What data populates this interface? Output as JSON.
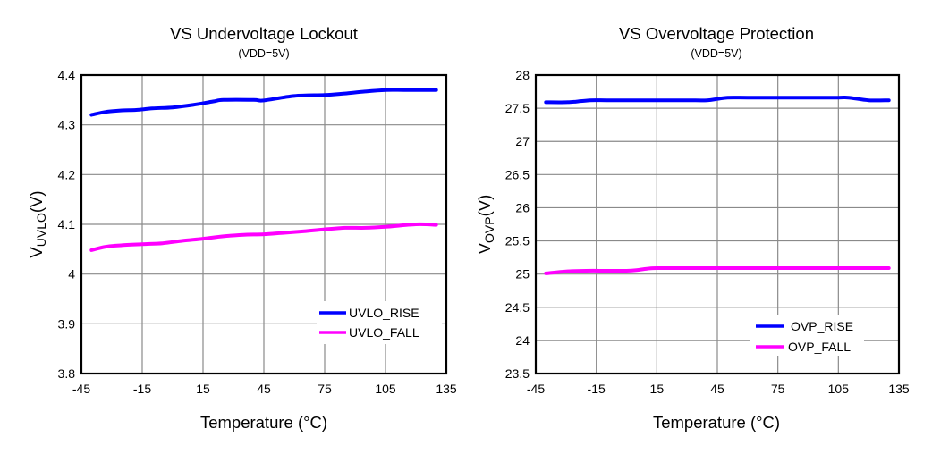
{
  "chart_data": [
    {
      "type": "line",
      "title": "VS Undervoltage Lockout",
      "subtitle": "(VDD=5V)",
      "xlabel": "Temperature (°C)",
      "ylabel_main": "V",
      "ylabel_sub": "UVLO",
      "ylabel_unit": "(V)",
      "xlim": [
        -45,
        135
      ],
      "ylim": [
        3.8,
        4.4
      ],
      "xticks": [
        "-45",
        "-15",
        "15",
        "45",
        "75",
        "105",
        "135"
      ],
      "yticks": [
        "3.8",
        "3.9",
        "4",
        "4.1",
        "4.2",
        "4.3",
        "4.4"
      ],
      "grid": true,
      "legend_position": "bottom-right",
      "series": [
        {
          "name": "UVLO_RISE",
          "color": "#0000ff",
          "x": [
            -40,
            -33,
            -25,
            -18,
            -10,
            0,
            10,
            20,
            25,
            40,
            45,
            60,
            75,
            85,
            95,
            105,
            115,
            130
          ],
          "y": [
            4.32,
            4.326,
            4.329,
            4.33,
            4.333,
            4.335,
            4.34,
            4.347,
            4.35,
            4.35,
            4.349,
            4.358,
            4.36,
            4.363,
            4.367,
            4.37,
            4.37,
            4.37
          ]
        },
        {
          "name": "UVLO_FALL",
          "color": "#ff00ff",
          "x": [
            -40,
            -33,
            -25,
            -15,
            -5,
            5,
            15,
            25,
            35,
            45,
            55,
            65,
            75,
            85,
            95,
            105,
            120,
            130
          ],
          "y": [
            4.048,
            4.055,
            4.058,
            4.06,
            4.062,
            4.067,
            4.071,
            4.076,
            4.079,
            4.08,
            4.083,
            4.086,
            4.09,
            4.093,
            4.093,
            4.095,
            4.1,
            4.099
          ]
        }
      ]
    },
    {
      "type": "line",
      "title": "VS Overvoltage Protection",
      "subtitle": "(VDD=5V)",
      "xlabel": "Temperature (°C)",
      "ylabel_main": "V",
      "ylabel_sub": "OVP",
      "ylabel_unit": "(V)",
      "xlim": [
        -45,
        135
      ],
      "ylim": [
        23.5,
        28
      ],
      "xticks": [
        "-45",
        "-15",
        "15",
        "45",
        "75",
        "105",
        "135"
      ],
      "yticks": [
        "23.5",
        "24",
        "24.5",
        "25",
        "25.5",
        "26",
        "26.5",
        "27",
        "27.5",
        "28"
      ],
      "grid": true,
      "legend_position": "bottom-right",
      "series": [
        {
          "name": "OVP_RISE",
          "color": "#0000ff",
          "x": [
            -40,
            -30,
            -25,
            -18,
            -10,
            0,
            15,
            30,
            40,
            45,
            50,
            60,
            75,
            90,
            105,
            110,
            120,
            130
          ],
          "y": [
            27.59,
            27.59,
            27.6,
            27.62,
            27.62,
            27.62,
            27.62,
            27.62,
            27.62,
            27.64,
            27.66,
            27.66,
            27.66,
            27.66,
            27.66,
            27.66,
            27.62,
            27.62
          ]
        },
        {
          "name": "OVP_FALL",
          "color": "#ff00ff",
          "x": [
            -40,
            -30,
            -20,
            -10,
            0,
            5,
            10,
            15,
            30,
            45,
            60,
            75,
            90,
            105,
            120,
            130
          ],
          "y": [
            25.01,
            25.04,
            25.05,
            25.05,
            25.05,
            25.06,
            25.08,
            25.09,
            25.09,
            25.09,
            25.09,
            25.09,
            25.09,
            25.09,
            25.09,
            25.09
          ]
        }
      ]
    }
  ]
}
